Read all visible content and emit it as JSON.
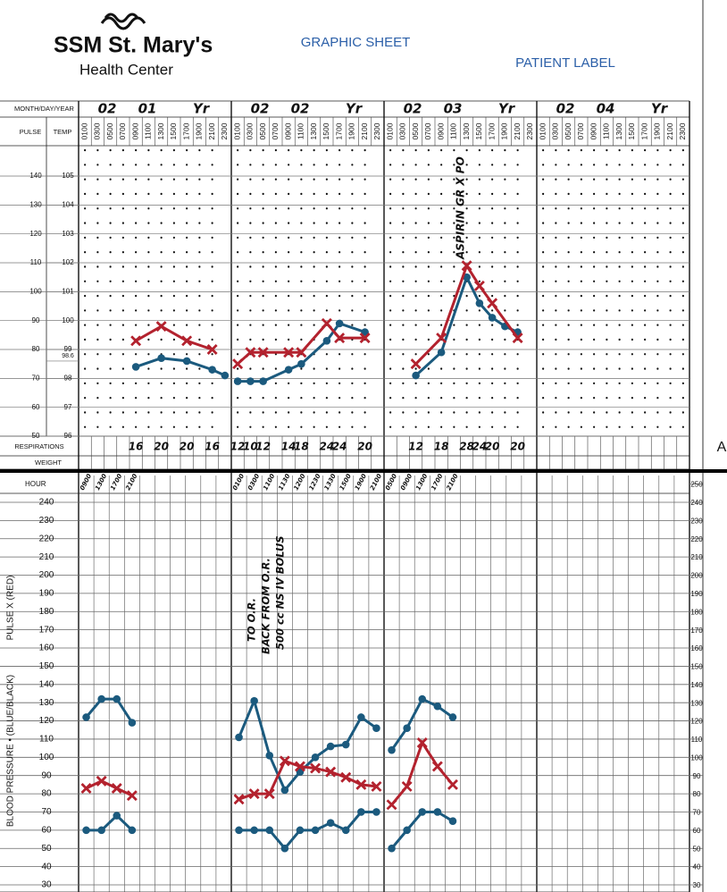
{
  "header": {
    "logo_name": "SSM St. Mary's",
    "logo_sub": "Health Center",
    "title": "GRAPHIC SHEET",
    "patient_label": "PATIENT LABEL",
    "side_mark": "A"
  },
  "chart_data": [
    {
      "type": "line",
      "row_labels": {
        "date": "MONTH/DAY/YEAR",
        "pulse": "PULSE",
        "temp": "TEMP",
        "respirations": "RESPIRATIONS",
        "weight": "WEIGHT"
      },
      "ylim": [
        50,
        150
      ],
      "yticks": [
        140,
        130,
        120,
        110,
        100,
        90,
        80,
        70,
        60,
        50
      ],
      "y2lim": [
        96,
        106
      ],
      "y2ticks": [
        105,
        104,
        103,
        102,
        101,
        100,
        99,
        98.6,
        98,
        97,
        96
      ],
      "annotations": [
        "ASPIRIN GR X PO"
      ],
      "days": [
        {
          "date": [
            "02",
            "01",
            "Yr"
          ],
          "hours": [
            "0100",
            "0300",
            "0500",
            "0700",
            "0900",
            "1100",
            "1300",
            "1500",
            "1700",
            "1900",
            "2100",
            "2300"
          ],
          "pulse": {
            "color": "#b3222e",
            "x": [
              "0900",
              "1300",
              "1700",
              "2100"
            ],
            "values": [
              83,
              88,
              83,
              80
            ]
          },
          "temp": {
            "color": "#1b5a7e",
            "x": [
              "0900",
              "1300",
              "1700",
              "2100",
              "2300"
            ],
            "values": [
              98.4,
              98.7,
              98.6,
              98.3,
              98.1
            ]
          },
          "respirations": {
            "x": [
              "0900",
              "1300",
              "1700",
              "2100"
            ],
            "values": [
              16,
              20,
              20,
              16
            ]
          }
        },
        {
          "date": [
            "02",
            "02",
            "Yr"
          ],
          "hours": [
            "0100",
            "0300",
            "0500",
            "0700",
            "0900",
            "1100",
            "1300",
            "1500",
            "1700",
            "1900",
            "2100",
            "2300"
          ],
          "pulse": {
            "color": "#b3222e",
            "x": [
              "0100",
              "0300",
              "0500",
              "0900",
              "1100",
              "1500",
              "1700",
              "2100"
            ],
            "values": [
              75,
              79,
              79,
              79,
              79,
              89,
              84,
              84
            ]
          },
          "temp": {
            "color": "#1b5a7e",
            "x": [
              "0100",
              "0300",
              "0500",
              "0900",
              "1100",
              "1500",
              "1700",
              "2100"
            ],
            "values": [
              97.9,
              97.9,
              97.9,
              98.3,
              98.5,
              99.3,
              99.9,
              99.6
            ]
          },
          "respirations": {
            "x": [
              "0100",
              "0300",
              "0500",
              "0900",
              "1100",
              "1500",
              "1700",
              "2100"
            ],
            "values": [
              12,
              10,
              12,
              14,
              18,
              24,
              24,
              20
            ]
          }
        },
        {
          "date": [
            "02",
            "03",
            "Yr"
          ],
          "hours": [
            "0100",
            "0300",
            "0500",
            "0700",
            "0900",
            "1100",
            "1300",
            "1500",
            "1700",
            "1900",
            "2100",
            "2300"
          ],
          "pulse": {
            "color": "#b3222e",
            "x": [
              "0500",
              "0900",
              "1300",
              "1500",
              "1700",
              "2100"
            ],
            "values": [
              75,
              84,
              109,
              102,
              96,
              84
            ]
          },
          "temp": {
            "color": "#1b5a7e",
            "x": [
              "0500",
              "0900",
              "1300",
              "1500",
              "1700",
              "1900",
              "2100"
            ],
            "values": [
              98.1,
              98.9,
              101.5,
              100.6,
              100.1,
              99.8,
              99.6
            ]
          },
          "respirations": {
            "x": [
              "0500",
              "0900",
              "1300",
              "1500",
              "1700",
              "2100"
            ],
            "values": [
              12,
              18,
              28,
              24,
              20,
              20
            ]
          }
        },
        {
          "date": [
            "02",
            "04",
            "Yr"
          ],
          "hours": [
            "0100",
            "0300",
            "0500",
            "0700",
            "0900",
            "1100",
            "1300",
            "1500",
            "1700",
            "1900",
            "2100",
            "2300"
          ]
        }
      ]
    },
    {
      "type": "line",
      "hour_label": "HOUR",
      "pulse_axis_label": "PULSE X (RED)",
      "bp_axis_label": "BLOOD PRESSURE • (BLUE/BLACK)",
      "ylim": [
        30,
        250
      ],
      "yticks": [
        240,
        230,
        220,
        210,
        200,
        190,
        180,
        170,
        160,
        150,
        140,
        130,
        120,
        110,
        100,
        90,
        80,
        70,
        60,
        50,
        40,
        30
      ],
      "y2lim": [
        30,
        250
      ],
      "y2ticks": [
        250,
        240,
        230,
        220,
        210,
        200,
        190,
        180,
        170,
        160,
        150,
        140,
        130,
        120,
        110,
        100,
        90,
        80,
        70,
        60,
        50,
        40,
        30
      ],
      "annotations": [
        "TO O.R.",
        "BACK FROM O.R.",
        "500 cc NS IV BOLUS"
      ],
      "days": [
        {
          "hours": [
            "0900",
            "1300",
            "1700",
            "2100"
          ],
          "systolic": {
            "color": "#1b5a7e",
            "values": [
              122,
              132,
              132,
              119
            ]
          },
          "pulse": {
            "color": "#b3222e",
            "values": [
              83,
              87,
              83,
              79
            ]
          },
          "diastolic": {
            "color": "#1b5a7e",
            "values": [
              60,
              60,
              68,
              60
            ]
          }
        },
        {
          "hours": [
            "0100",
            "0300",
            "1100",
            "1130",
            "1200",
            "1230",
            "1330",
            "1500",
            "1900",
            "2100"
          ],
          "systolic": {
            "color": "#1b5a7e",
            "values": [
              111,
              131,
              101,
              82,
              92,
              100,
              106,
              107,
              122,
              116
            ]
          },
          "pulse": {
            "color": "#b3222e",
            "values": [
              77,
              80,
              80,
              98,
              95,
              94,
              92,
              89,
              85,
              84
            ]
          },
          "diastolic": {
            "color": "#1b5a7e",
            "values": [
              60,
              60,
              60,
              50,
              60,
              60,
              64,
              60,
              70,
              70
            ]
          }
        },
        {
          "hours": [
            "0500",
            "0900",
            "1300",
            "1700",
            "2100"
          ],
          "systolic": {
            "color": "#1b5a7e",
            "values": [
              104,
              116,
              132,
              128,
              122
            ]
          },
          "pulse": {
            "color": "#b3222e",
            "values": [
              74,
              84,
              108,
              95,
              85
            ]
          },
          "diastolic": {
            "color": "#1b5a7e",
            "values": [
              50,
              60,
              70,
              70,
              65
            ]
          }
        }
      ]
    }
  ]
}
